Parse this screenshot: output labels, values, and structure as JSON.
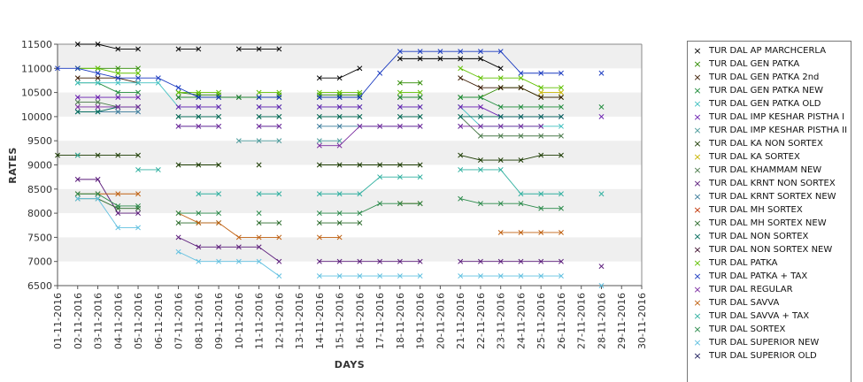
{
  "chart_data": {
    "type": "line",
    "title": "",
    "xlabel": "DAYS",
    "ylabel": "RATES",
    "ylim": [
      6500,
      11500
    ],
    "yticks": [
      6500,
      7000,
      7500,
      8000,
      8500,
      9000,
      9500,
      10000,
      10500,
      11000,
      11500
    ],
    "grid": "alternating horizontal bands",
    "legend_position": "right",
    "categories": [
      "01-11-2016",
      "02-11-2016",
      "03-11-2016",
      "04-11-2016",
      "05-11-2016",
      "06-11-2016",
      "07-11-2016",
      "08-11-2016",
      "09-11-2016",
      "10-11-2016",
      "11-11-2016",
      "12-11-2016",
      "13-11-2016",
      "14-11-2016",
      "15-11-2016",
      "16-11-2016",
      "17-11-2016",
      "18-11-2016",
      "19-11-2016",
      "20-11-2016",
      "21-11-2016",
      "22-11-2016",
      "23-11-2016",
      "24-11-2016",
      "25-11-2016",
      "26-11-2016",
      "27-11-2016",
      "28-11-2016",
      "29-11-2016",
      "30-11-2016"
    ],
    "series": [
      {
        "name": "TUR DAL AP MARCHCERLA",
        "color": "#000000",
        "values": [
          null,
          11500,
          11500,
          11400,
          11400,
          null,
          11400,
          11400,
          null,
          11400,
          11400,
          11400,
          null,
          10800,
          10800,
          11000,
          null,
          11200,
          11200,
          11200,
          11200,
          11200,
          11000,
          null,
          null,
          null,
          null,
          null,
          null,
          null
        ]
      },
      {
        "name": "TUR DAL GEN PATKA",
        "color": "#2e8b00",
        "values": [
          null,
          11000,
          11000,
          11000,
          11000,
          null,
          10500,
          10450,
          10450,
          null,
          null,
          10450,
          null,
          10450,
          10450,
          10450,
          null,
          10700,
          10700,
          null,
          10400,
          10400,
          10600,
          10600,
          10400,
          10400,
          null,
          null,
          null,
          null
        ]
      },
      {
        "name": "TUR DAL GEN PATKA 2nd",
        "color": "#3a1a00",
        "values": [
          null,
          10800,
          10800,
          10800,
          10700,
          null,
          10400,
          10400,
          10400,
          10400,
          10400,
          10400,
          null,
          10400,
          10400,
          10400,
          null,
          10400,
          10400,
          null,
          10800,
          10600,
          10600,
          10600,
          10400,
          10400,
          null,
          null,
          null,
          null
        ]
      },
      {
        "name": "TUR DAL GEN PATKA NEW",
        "color": "#1e8b3a",
        "values": [
          null,
          10700,
          10700,
          10500,
          10500,
          null,
          10400,
          10400,
          10400,
          10400,
          10400,
          10400,
          null,
          10400,
          10400,
          10400,
          null,
          10400,
          10400,
          null,
          10400,
          10400,
          10200,
          10200,
          10200,
          10200,
          null,
          10200,
          null,
          null
        ]
      },
      {
        "name": "TUR DAL GEN PATKA OLD",
        "color": "#40c0c0",
        "values": [
          null,
          10700,
          10700,
          10700,
          10700,
          10700,
          10200,
          10200,
          10200,
          null,
          10200,
          10200,
          null,
          10200,
          10200,
          10200,
          null,
          10200,
          10200,
          null,
          10200,
          9800,
          9800,
          9800,
          9800,
          9800,
          null,
          null,
          null,
          null
        ]
      },
      {
        "name": "TUR DAL IMP KESHAR PISTHA I",
        "color": "#6a1fb0",
        "values": [
          null,
          10400,
          10400,
          10400,
          10400,
          null,
          10200,
          10200,
          10200,
          null,
          10200,
          10200,
          null,
          10200,
          10200,
          10200,
          null,
          10200,
          10200,
          null,
          10200,
          10200,
          10000,
          10000,
          10000,
          10000,
          null,
          10000,
          null,
          null
        ]
      },
      {
        "name": "TUR DAL IMP KESHAR PISTHA II",
        "color": "#4a9a9a",
        "values": [
          null,
          null,
          null,
          null,
          null,
          null,
          null,
          null,
          null,
          9500,
          9500,
          9500,
          null,
          9500,
          9500,
          null,
          null,
          null,
          null,
          null,
          null,
          null,
          null,
          null,
          null,
          null,
          null,
          null,
          null,
          null
        ]
      },
      {
        "name": "TUR DAL KA NON SORTEX",
        "color": "#1a3a00",
        "values": [
          9200,
          9200,
          9200,
          9200,
          9200,
          null,
          9000,
          9000,
          9000,
          null,
          9000,
          null,
          null,
          9000,
          9000,
          9000,
          9000,
          9000,
          9000,
          null,
          9200,
          9100,
          9100,
          9100,
          9200,
          9200,
          null,
          null,
          null,
          null
        ]
      },
      {
        "name": "TUR DAL KA SORTEX",
        "color": "#c8b400",
        "values": [
          null,
          null,
          null,
          null,
          null,
          null,
          null,
          null,
          null,
          null,
          null,
          null,
          null,
          null,
          null,
          null,
          null,
          null,
          null,
          null,
          null,
          null,
          null,
          null,
          10500,
          10500,
          null,
          null,
          null,
          null
        ]
      },
      {
        "name": "TUR DAL KHAMMAM NEW",
        "color": "#4a7a4a",
        "values": [
          null,
          10300,
          10300,
          10200,
          10200,
          null,
          10000,
          10000,
          10000,
          null,
          10000,
          10000,
          null,
          10000,
          10000,
          10000,
          null,
          10000,
          10000,
          null,
          10000,
          9600,
          9600,
          9600,
          9600,
          9600,
          null,
          null,
          null,
          null
        ]
      },
      {
        "name": "TUR DAL KRNT NON SORTEX",
        "color": "#5a1a7a",
        "values": [
          null,
          8700,
          8700,
          8000,
          8000,
          null,
          7500,
          7300,
          7300,
          7300,
          7300,
          7000,
          null,
          7000,
          7000,
          7000,
          7000,
          7000,
          7000,
          null,
          7000,
          7000,
          7000,
          7000,
          7000,
          7000,
          null,
          6900,
          null,
          null
        ]
      },
      {
        "name": "TUR DAL KRNT SORTEX NEW",
        "color": "#3a7a9a",
        "values": [
          null,
          10100,
          10100,
          10100,
          10100,
          null,
          9800,
          9800,
          9800,
          null,
          9800,
          9800,
          null,
          9800,
          9800,
          9800,
          9800,
          9800,
          9800,
          null,
          9800,
          null,
          null,
          null,
          null,
          null,
          null,
          null,
          null,
          null
        ]
      },
      {
        "name": "TUR DAL MH SORTEX",
        "color": "#c03000",
        "values": [
          null,
          null,
          null,
          null,
          null,
          null,
          null,
          null,
          null,
          null,
          null,
          null,
          null,
          null,
          null,
          null,
          null,
          null,
          null,
          null,
          null,
          null,
          null,
          null,
          null,
          null,
          null,
          null,
          null,
          null
        ]
      },
      {
        "name": "TUR DAL MH SORTEX NEW",
        "color": "#2a6a2a",
        "values": [
          null,
          8300,
          8300,
          8100,
          8100,
          null,
          7800,
          7800,
          7800,
          null,
          7800,
          7800,
          null,
          7800,
          7800,
          7800,
          null,
          8200,
          8200,
          null,
          null,
          null,
          null,
          null,
          null,
          null,
          null,
          null,
          null,
          null
        ]
      },
      {
        "name": "TUR DAL NON SORTEX",
        "color": "#006a5a",
        "values": [
          null,
          10100,
          10100,
          10200,
          10200,
          null,
          10000,
          10000,
          10000,
          null,
          10000,
          10000,
          null,
          10000,
          10000,
          10000,
          null,
          10000,
          10000,
          null,
          10000,
          10000,
          10000,
          10000,
          10000,
          10000,
          null,
          null,
          null,
          null
        ]
      },
      {
        "name": "TUR DAL NON SORTEX NEW",
        "color": "#3a0a2a",
        "values": [
          null,
          null,
          null,
          null,
          null,
          null,
          null,
          null,
          null,
          null,
          null,
          null,
          null,
          null,
          null,
          null,
          null,
          null,
          null,
          null,
          null,
          null,
          null,
          null,
          null,
          null,
          null,
          null,
          null,
          null
        ]
      },
      {
        "name": "TUR DAL PATKA",
        "color": "#60c000",
        "values": [
          null,
          11000,
          11000,
          10900,
          10900,
          null,
          10500,
          10500,
          10500,
          null,
          10500,
          10500,
          null,
          10500,
          10500,
          10500,
          null,
          10500,
          10500,
          null,
          11000,
          10800,
          10800,
          10800,
          10600,
          10600,
          null,
          null,
          null,
          null
        ]
      },
      {
        "name": "TUR DAL PATKA + TAX",
        "color": "#1a3ac0",
        "values": [
          11000,
          11000,
          10900,
          10800,
          10800,
          10800,
          10600,
          10400,
          10400,
          null,
          10400,
          10400,
          null,
          10400,
          10400,
          10400,
          10900,
          11350,
          11350,
          11350,
          11350,
          11350,
          11350,
          10900,
          10900,
          10900,
          null,
          10900,
          null,
          null
        ]
      },
      {
        "name": "TUR DAL REGULAR",
        "color": "#7a2aa0",
        "values": [
          null,
          10200,
          10200,
          10200,
          10200,
          null,
          9800,
          9800,
          9800,
          null,
          9800,
          9800,
          null,
          9400,
          9400,
          9800,
          9800,
          9800,
          9800,
          null,
          9800,
          9800,
          9800,
          9800,
          9800,
          null,
          null,
          null,
          null,
          null
        ]
      },
      {
        "name": "TUR DAL SAVVA",
        "color": "#c06010",
        "values": [
          null,
          8400,
          8400,
          8400,
          8400,
          null,
          8000,
          7800,
          7800,
          7500,
          7500,
          7500,
          null,
          7500,
          7500,
          null,
          null,
          8200,
          8200,
          null,
          null,
          null,
          7600,
          7600,
          7600,
          7600,
          null,
          null,
          null,
          null
        ]
      },
      {
        "name": "TUR DAL SAVVA + TAX",
        "color": "#30b0a0",
        "values": [
          null,
          9200,
          null,
          null,
          8900,
          8900,
          null,
          8400,
          8400,
          null,
          8400,
          8400,
          null,
          8400,
          8400,
          8400,
          8750,
          8750,
          8750,
          null,
          8900,
          8900,
          8900,
          8400,
          8400,
          8400,
          null,
          8400,
          null,
          null
        ]
      },
      {
        "name": "TUR DAL SORTEX",
        "color": "#2a8a4a",
        "values": [
          null,
          8400,
          8400,
          8150,
          8150,
          null,
          8000,
          8000,
          8000,
          null,
          8000,
          null,
          null,
          8000,
          8000,
          8000,
          8200,
          8200,
          8200,
          null,
          8300,
          8200,
          8200,
          8200,
          8100,
          8100,
          null,
          null,
          null,
          null
        ]
      },
      {
        "name": "TUR DAL SUPERIOR NEW",
        "color": "#60c0e0",
        "values": [
          null,
          8300,
          8300,
          7700,
          7700,
          null,
          7200,
          7000,
          7000,
          7000,
          7000,
          6700,
          null,
          6700,
          6700,
          6700,
          6700,
          6700,
          6700,
          null,
          6700,
          6700,
          6700,
          6700,
          6700,
          6700,
          null,
          6500,
          null,
          null
        ]
      },
      {
        "name": "TUR DAL SUPERIOR OLD",
        "color": "#1a1a5a",
        "values": [
          null,
          null,
          null,
          null,
          null,
          null,
          null,
          null,
          null,
          null,
          null,
          null,
          null,
          null,
          null,
          null,
          null,
          null,
          null,
          null,
          null,
          null,
          null,
          null,
          null,
          null,
          null,
          null,
          null,
          null
        ]
      }
    ]
  }
}
